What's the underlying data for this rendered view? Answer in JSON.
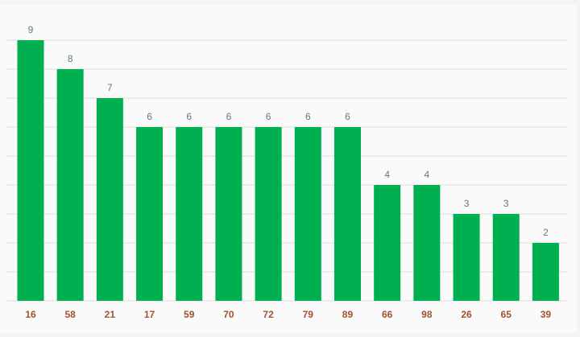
{
  "chart_data": {
    "type": "bar",
    "categories": [
      "16",
      "58",
      "21",
      "17",
      "59",
      "70",
      "72",
      "79",
      "89",
      "66",
      "98",
      "26",
      "65",
      "39"
    ],
    "values": [
      9,
      8,
      7,
      6,
      6,
      6,
      6,
      6,
      6,
      4,
      4,
      3,
      3,
      2
    ],
    "color": "#00b050",
    "ylim": [
      0,
      9
    ],
    "yticks": [
      0,
      1,
      2,
      3,
      4,
      5,
      6,
      7,
      8,
      9
    ],
    "grid": true
  }
}
